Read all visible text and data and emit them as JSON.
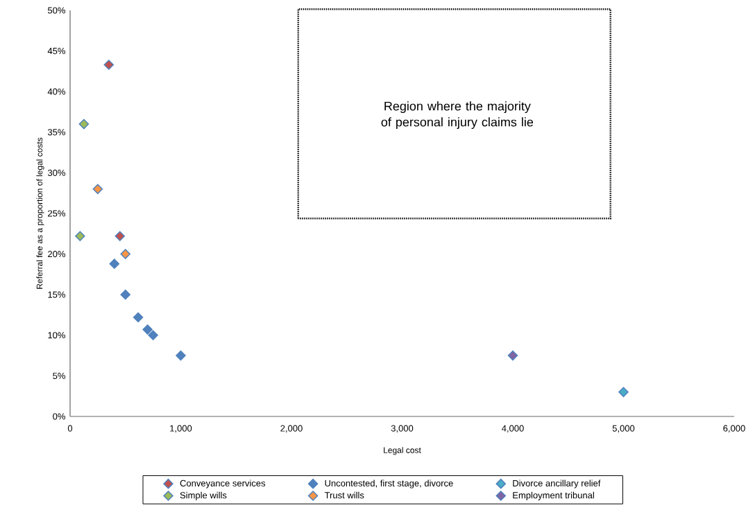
{
  "chart_data": {
    "type": "scatter",
    "xlabel": "Legal cost",
    "ylabel": "Referral fee as a proportion of legal costs",
    "marker": "diamond",
    "legend": "bottom",
    "grid": false,
    "xlim": [
      0,
      6000
    ],
    "ylim": [
      0,
      50
    ],
    "xticks": [
      0,
      {
        "value": 1000,
        "label": "1,000"
      },
      {
        "value": 2000,
        "label": "2,000"
      },
      {
        "value": 3000,
        "label": "3,000"
      },
      {
        "value": 4000,
        "label": "4,000"
      },
      {
        "value": 5000,
        "label": "5,000"
      },
      {
        "value": 6000,
        "label": "6,000"
      }
    ],
    "yticks": [
      {
        "value": 0,
        "label": "0%"
      },
      {
        "value": 5,
        "label": "5%"
      },
      {
        "value": 10,
        "label": "10%"
      },
      {
        "value": 15,
        "label": "15%"
      },
      {
        "value": 20,
        "label": "20%"
      },
      {
        "value": 25,
        "label": "25%"
      },
      {
        "value": 30,
        "label": "30%"
      },
      {
        "value": 35,
        "label": "35%"
      },
      {
        "value": 40,
        "label": "40%"
      },
      {
        "value": 45,
        "label": "45%"
      },
      {
        "value": 50,
        "label": "50%"
      }
    ],
    "annotations": [
      "Region where the majority of personal injury claims lie"
    ],
    "series": [
      {
        "name": "Conveyance services",
        "color": "#c0504d",
        "x": [
          350,
          450
        ],
        "values": [
          43.3,
          22.2
        ]
      },
      {
        "name": "Uncontested, first stage, divorce",
        "color": "#4f81bd",
        "x": [
          400,
          500,
          615,
          700,
          750,
          1000
        ],
        "values": [
          18.8,
          15,
          12.2,
          10.7,
          10,
          7.5
        ]
      },
      {
        "name": "Divorce ancillary relief",
        "color": "#4bacc6",
        "x": [
          5000
        ],
        "values": [
          3
        ]
      },
      {
        "name": "Simple wills",
        "color": "#9bbb59",
        "x": [
          90,
          125
        ],
        "values": [
          22.2,
          36
        ]
      },
      {
        "name": "Trust wills",
        "color": "#f79646",
        "x": [
          250,
          500
        ],
        "values": [
          28,
          20
        ]
      },
      {
        "name": "Employment tribunal",
        "color": "#8064a2",
        "x": [
          4000
        ],
        "values": [
          7.5
        ]
      }
    ]
  }
}
